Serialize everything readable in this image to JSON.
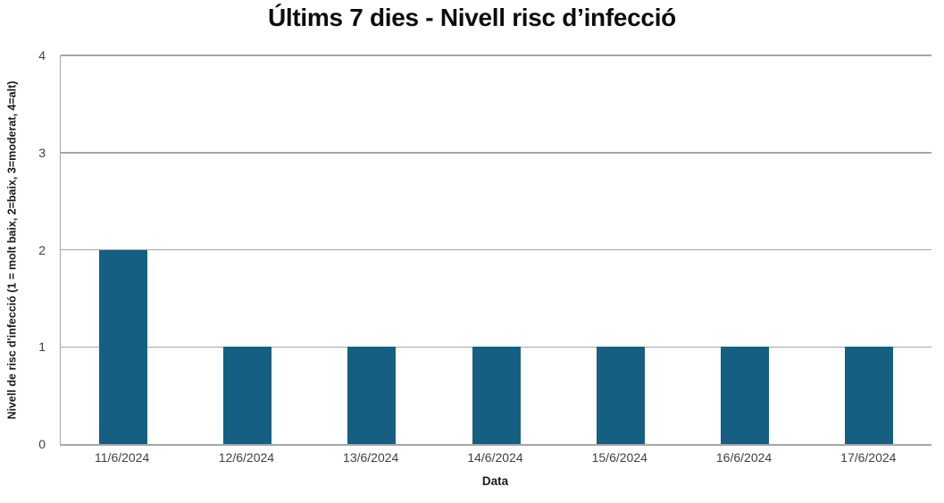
{
  "chart_data": {
    "type": "bar",
    "title": "Últims 7 dies - Nivell risc d’infecció",
    "xlabel": "Data",
    "ylabel": "Nivell de risc d'infecció (1 = molt baix, 2=baix, 3=moderat, 4=alt)",
    "categories": [
      "11/6/2024",
      "12/6/2024",
      "13/6/2024",
      "14/6/2024",
      "15/6/2024",
      "16/6/2024",
      "17/6/2024"
    ],
    "values": [
      2,
      1,
      1,
      1,
      1,
      1,
      1
    ],
    "ylim": [
      0,
      4
    ],
    "yticks": [
      0,
      1,
      2,
      3,
      4
    ],
    "grid": "horizontal",
    "legend": "none",
    "colors": {
      "bar": "#156082",
      "gridline": "#a6a6a6",
      "axis": "#a6a6a6",
      "tick_text": "#404040",
      "title_text": "#0d0d0d"
    }
  }
}
